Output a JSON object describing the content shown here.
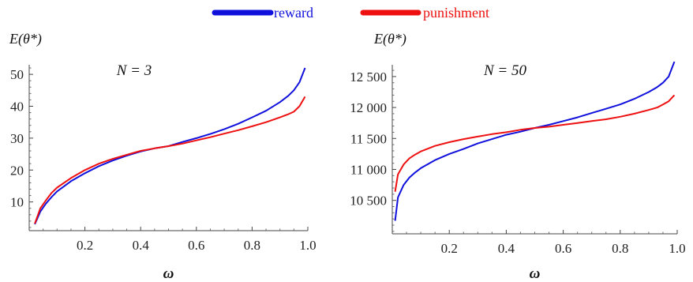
{
  "legend": [
    {
      "label": "reward",
      "color": "#1010dd"
    },
    {
      "label": "punishment",
      "color": "#ee1010"
    }
  ],
  "chart_data": [
    {
      "type": "line",
      "title": "N = 3",
      "xlabel": "ω",
      "ylabel": "E(θ*)",
      "xlim": [
        0.0,
        1.0
      ],
      "ylim": [
        1,
        53
      ],
      "xticks": [
        0.2,
        0.4,
        0.6,
        0.8,
        1.0
      ],
      "xtick_labels": [
        "0.2",
        "0.4",
        "0.6",
        "0.8",
        "1.0"
      ],
      "yticks": [
        10,
        20,
        30,
        40,
        50
      ],
      "ytick_labels": [
        "10",
        "20",
        "30",
        "40",
        "50"
      ],
      "series": [
        {
          "name": "reward",
          "color": "#1010dd",
          "x": [
            0.02,
            0.04,
            0.06,
            0.08,
            0.1,
            0.15,
            0.2,
            0.25,
            0.3,
            0.35,
            0.4,
            0.45,
            0.5,
            0.55,
            0.6,
            0.65,
            0.7,
            0.75,
            0.8,
            0.85,
            0.9,
            0.93,
            0.95,
            0.97,
            0.99
          ],
          "y": [
            3,
            7,
            9.5,
            11.5,
            13.3,
            16.5,
            19,
            21.2,
            23,
            24.5,
            25.8,
            26.8,
            27.5,
            28.8,
            30,
            31.3,
            32.8,
            34.5,
            36.5,
            38.6,
            41.3,
            43.3,
            45,
            47.5,
            52
          ]
        },
        {
          "name": "punishment",
          "color": "#ee1010",
          "x": [
            0.02,
            0.04,
            0.06,
            0.08,
            0.1,
            0.15,
            0.2,
            0.25,
            0.3,
            0.35,
            0.4,
            0.45,
            0.5,
            0.55,
            0.6,
            0.65,
            0.7,
            0.75,
            0.8,
            0.85,
            0.9,
            0.93,
            0.95,
            0.97,
            0.99
          ],
          "y": [
            3.2,
            8,
            10.5,
            12.8,
            14.5,
            17.5,
            20,
            22,
            23.5,
            24.8,
            26,
            26.8,
            27.5,
            28.3,
            29.3,
            30.3,
            31.4,
            32.5,
            33.7,
            35,
            36.5,
            37.5,
            38.3,
            40,
            43
          ]
        }
      ]
    },
    {
      "type": "line",
      "title": "N = 50",
      "xlabel": "ω",
      "ylabel": "E(θ*)",
      "xlim": [
        0.0,
        1.0
      ],
      "ylim": [
        9960,
        12690
      ],
      "xticks": [
        0.2,
        0.4,
        0.6,
        0.8,
        1.0
      ],
      "xtick_labels": [
        "0.2",
        "0.4",
        "0.6",
        "0.8",
        "1.0"
      ],
      "yticks": [
        10500,
        11000,
        11500,
        12000,
        12500
      ],
      "ytick_labels": [
        "10 500",
        "11 000",
        "11 500",
        "12 000",
        "12 500"
      ],
      "series": [
        {
          "name": "reward",
          "color": "#1010dd",
          "x": [
            0.01,
            0.02,
            0.04,
            0.06,
            0.08,
            0.1,
            0.15,
            0.2,
            0.25,
            0.3,
            0.35,
            0.4,
            0.45,
            0.5,
            0.55,
            0.6,
            0.65,
            0.7,
            0.75,
            0.8,
            0.85,
            0.9,
            0.93,
            0.95,
            0.97,
            0.99
          ],
          "y": [
            10170,
            10550,
            10750,
            10870,
            10950,
            11020,
            11150,
            11250,
            11330,
            11420,
            11490,
            11560,
            11610,
            11670,
            11720,
            11780,
            11840,
            11910,
            11980,
            12050,
            12140,
            12250,
            12330,
            12400,
            12500,
            12740
          ]
        },
        {
          "name": "punishment",
          "color": "#ee1010",
          "x": [
            0.01,
            0.02,
            0.04,
            0.06,
            0.08,
            0.1,
            0.15,
            0.2,
            0.25,
            0.3,
            0.35,
            0.4,
            0.45,
            0.5,
            0.55,
            0.6,
            0.65,
            0.7,
            0.75,
            0.8,
            0.85,
            0.9,
            0.93,
            0.95,
            0.97,
            0.99
          ],
          "y": [
            10640,
            10920,
            11080,
            11180,
            11240,
            11290,
            11380,
            11440,
            11490,
            11530,
            11570,
            11600,
            11640,
            11670,
            11690,
            11720,
            11750,
            11780,
            11810,
            11850,
            11900,
            11960,
            12000,
            12050,
            12100,
            12200
          ]
        }
      ]
    }
  ]
}
